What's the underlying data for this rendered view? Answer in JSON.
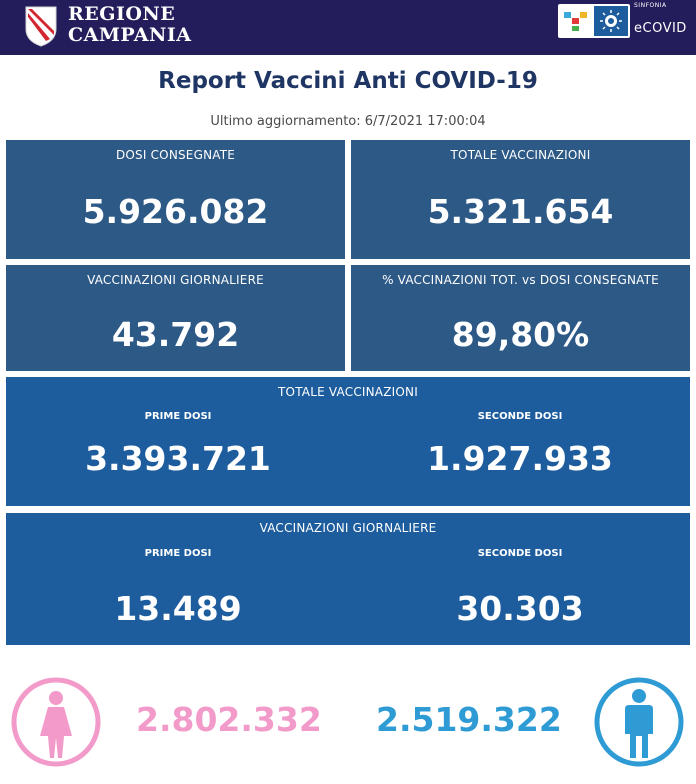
{
  "header": {
    "brand_line1": "REGIONE",
    "brand_line2": "CAMPANIA",
    "partner_small": "SINFONIA",
    "partner_big": "eCOVID",
    "bar_color": "#241d5c"
  },
  "report": {
    "title": "Report Vaccini Anti COVID-19",
    "update": "Ultimo aggiornamento: 6/7/2021  17:00:04"
  },
  "kpis": {
    "dosi_consegnate": {
      "label": "DOSI  CONSEGNATE",
      "value": "5.926.082"
    },
    "totale_vaccinazioni": {
      "label": "TOTALE VACCINAZIONI",
      "value": "5.321.654"
    },
    "vaccinazioni_giornaliere": {
      "label": "VACCINAZIONI GIORNALIERE",
      "value": "43.792"
    },
    "percentuale": {
      "label": "% VACCINAZIONI TOT. vs DOSI CONSEGNATE",
      "value": "89,80%"
    }
  },
  "totale_block": {
    "title": "TOTALE VACCINAZIONI",
    "prime_label": "PRIME DOSI",
    "prime_value": "3.393.721",
    "seconde_label": "SECONDE DOSI",
    "seconde_value": "1.927.933"
  },
  "giornaliere_block": {
    "title": "VACCINAZIONI GIORNALIERE",
    "prime_label": "PRIME DOSI",
    "prime_value": "13.489",
    "seconde_label": "SECONDE DOSI",
    "seconde_value": "30.303"
  },
  "gender": {
    "female_value": "2.802.332",
    "male_value": "2.519.322",
    "female_color": "#f29ac9",
    "male_color": "#2f9bd5",
    "female_icon": "female-icon",
    "male_icon": "male-icon"
  },
  "colors": {
    "card_dark": "#2d5987",
    "card_blue": "#1d5d9e",
    "title": "#1f3563"
  }
}
